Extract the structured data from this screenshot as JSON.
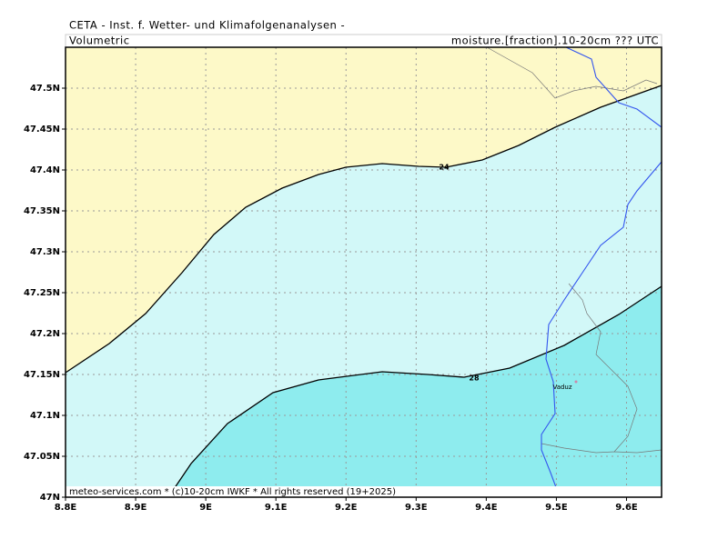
{
  "header": {
    "title": "CETA - Inst. f. Wetter- und Klimafolgenanalysen -",
    "left": "Volumetric",
    "right": "moisture.[fraction].10-20cm ??? UTC"
  },
  "map": {
    "lon_range": [
      8.8,
      9.65
    ],
    "lat_range": [
      47,
      47.55
    ],
    "lon_ticks": [
      {
        "value": 8.8,
        "label": "8.8E"
      },
      {
        "value": 8.9,
        "label": "8.9E"
      },
      {
        "value": 9,
        "label": "9E"
      },
      {
        "value": 9.1,
        "label": "9.1E"
      },
      {
        "value": 9.2,
        "label": "9.2E"
      },
      {
        "value": 9.3,
        "label": "9.3E"
      },
      {
        "value": 9.4,
        "label": "9.4E"
      },
      {
        "value": 9.5,
        "label": "9.5E"
      },
      {
        "value": 9.6,
        "label": "9.6E"
      }
    ],
    "lat_ticks": [
      {
        "value": 47,
        "label": "47N"
      },
      {
        "value": 47.05,
        "label": "47.05N"
      },
      {
        "value": 47.1,
        "label": "47.1N"
      },
      {
        "value": 47.15,
        "label": "47.15N"
      },
      {
        "value": 47.2,
        "label": "47.2N"
      },
      {
        "value": 47.25,
        "label": "47.25N"
      },
      {
        "value": 47.3,
        "label": "47.3N"
      },
      {
        "value": 47.35,
        "label": "47.35N"
      },
      {
        "value": 47.4,
        "label": "47.4N"
      },
      {
        "value": 47.45,
        "label": "47.45N"
      },
      {
        "value": 47.5,
        "label": "47.5N"
      }
    ],
    "contour_labels": [
      "24",
      "28"
    ],
    "places": [
      "Vaduz"
    ],
    "footer": "meteo-services.com * (c)10-20cm IWKF * All rights reserved (19+2025)"
  }
}
